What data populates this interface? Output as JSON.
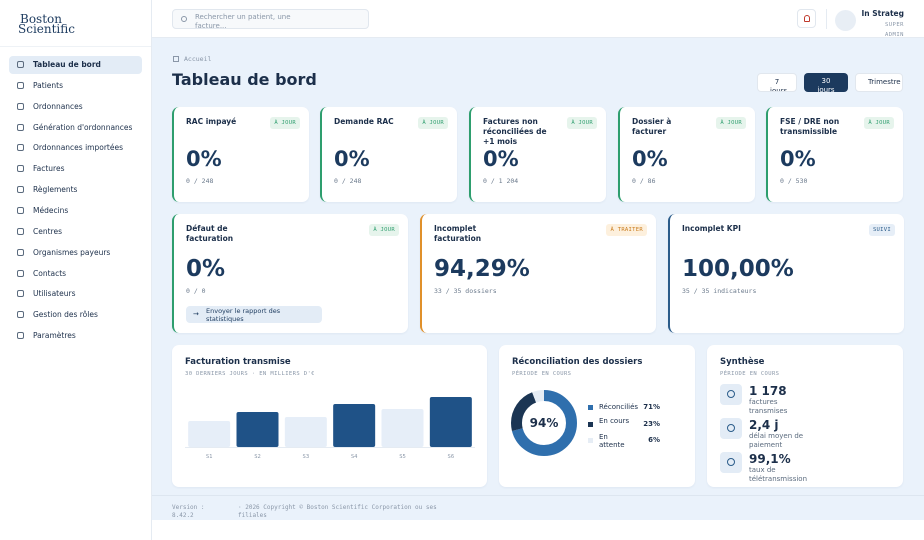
{
  "sidebar": {
    "logo_line1": "Boston",
    "logo_line2": "Scientific",
    "menu": [
      "Tableau de bord",
      "Patients",
      "Ordonnances",
      "Génération d'ordonnances",
      "Ordonnances importées",
      "Factures",
      "Règlements",
      "Médecins",
      "Centres",
      "Organismes payeurs",
      "Contacts",
      "Utilisateurs",
      "Gestion des rôles",
      "Paramètres"
    ],
    "active_index": 0
  },
  "topbar": {
    "search_placeholder": "Rechercher un patient, une facture...",
    "user_name": "In Strateg",
    "user_role": "SUPER ADMIN"
  },
  "breadcrumb": "Accueil",
  "page_title": "Tableau de bord",
  "periods": [
    "7 jours",
    "30 jours",
    "Trimestre"
  ],
  "active_period": 1,
  "kpi_row1": [
    {
      "label": "RAC impayé",
      "badge": "À JOUR",
      "value": "0%",
      "detail": "0 / 248",
      "color": "#2e9e6e"
    },
    {
      "label": "Demande RAC",
      "badge": "À JOUR",
      "value": "0%",
      "detail": "0 / 248",
      "color": "#2e9e6e"
    },
    {
      "label": "Factures non réconciliées de +1 mois",
      "badge": "À JOUR",
      "value": "0%",
      "detail": "0 / 1 204",
      "color": "#2e9e6e"
    },
    {
      "label": "Dossier à facturer",
      "badge": "À JOUR",
      "value": "0%",
      "detail": "0 / 86",
      "color": "#2e9e6e"
    },
    {
      "label": "FSE / DRE non transmissible",
      "badge": "À JOUR",
      "value": "0%",
      "detail": "0 / 530",
      "color": "#2e9e6e"
    }
  ],
  "kpi_row2": [
    {
      "label": "Défaut de facturation",
      "badge": "À JOUR",
      "value": "0%",
      "detail": "0 / 0",
      "action": "Envoyer le rapport des statistiques",
      "color": "#2e9e6e"
    },
    {
      "label": "Incomplet facturation",
      "badge": "À TRAITER",
      "value": "94,29%",
      "detail": "33 / 35 dossiers",
      "color": "#e0902a"
    },
    {
      "label": "Incomplet KPI",
      "badge": "SUIVI",
      "value": "100,00%",
      "detail": "35 / 35 indicateurs",
      "color": "#2b5c8a"
    }
  ],
  "chart_data": [
    {
      "type": "bar",
      "title": "Facturation transmise",
      "subtitle": "30 DERNIERS JOURS · EN MILLIERS D'€",
      "categories": [
        "S1",
        "S2",
        "S3",
        "S4",
        "S5",
        "S6"
      ],
      "values": [
        26,
        35,
        30,
        43,
        38,
        50
      ],
      "colors": [
        "#e6eef8",
        "#1f5287",
        "#e6eef8",
        "#1f5287",
        "#e6eef8",
        "#1f5287"
      ]
    },
    {
      "type": "pie",
      "title": "Réconciliation des dossiers",
      "subtitle": "PÉRIODE EN COURS",
      "center_label": "94%",
      "categories": [
        "Réconciliés",
        "En cours",
        "En attente"
      ],
      "values": [
        71,
        23,
        6
      ],
      "value_labels": [
        "71%",
        "23%",
        "6%"
      ],
      "colors": [
        "#2f6fad",
        "#1b3553",
        "#e6edf5"
      ]
    }
  ],
  "synthesis": {
    "title": "Synthèse",
    "subtitle": "PÉRIODE EN COURS",
    "items": [
      {
        "value": "1 178",
        "label": "factures transmises"
      },
      {
        "value": "2,4 j",
        "label": "délai moyen de paiement"
      },
      {
        "value": "99,1%",
        "label": "taux de télétransmission"
      }
    ]
  },
  "footer": {
    "version": "Version : 8.42.2",
    "copyright": "· 2026 Copyright © Boston Scientific Corporation ou ses filiales"
  }
}
